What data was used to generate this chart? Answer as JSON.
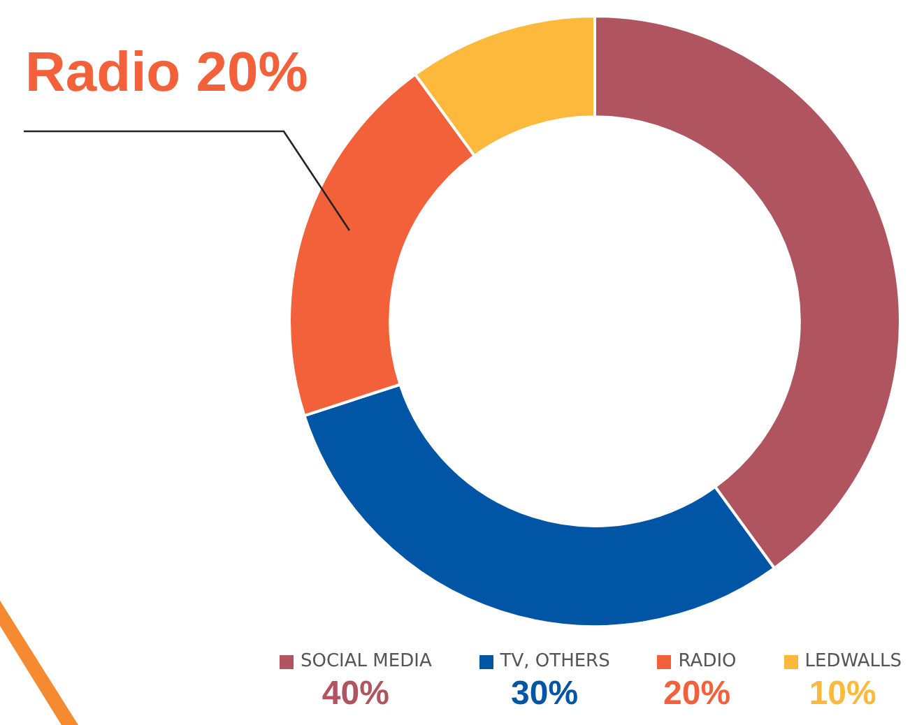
{
  "chart_data": {
    "type": "donut",
    "categories": [
      "SOCIAL MEDIA",
      "TV, OTHERS",
      "RADIO",
      "LEDWALLS"
    ],
    "values": [
      40,
      30,
      20,
      10
    ],
    "colors": [
      "#b05560",
      "#0055a4",
      "#f2613a",
      "#fdb93b"
    ],
    "value_labels": [
      "40%",
      "30%",
      "20%",
      "10%"
    ],
    "legend": "bottom",
    "annotations": [
      "Radio 20%"
    ]
  }
}
